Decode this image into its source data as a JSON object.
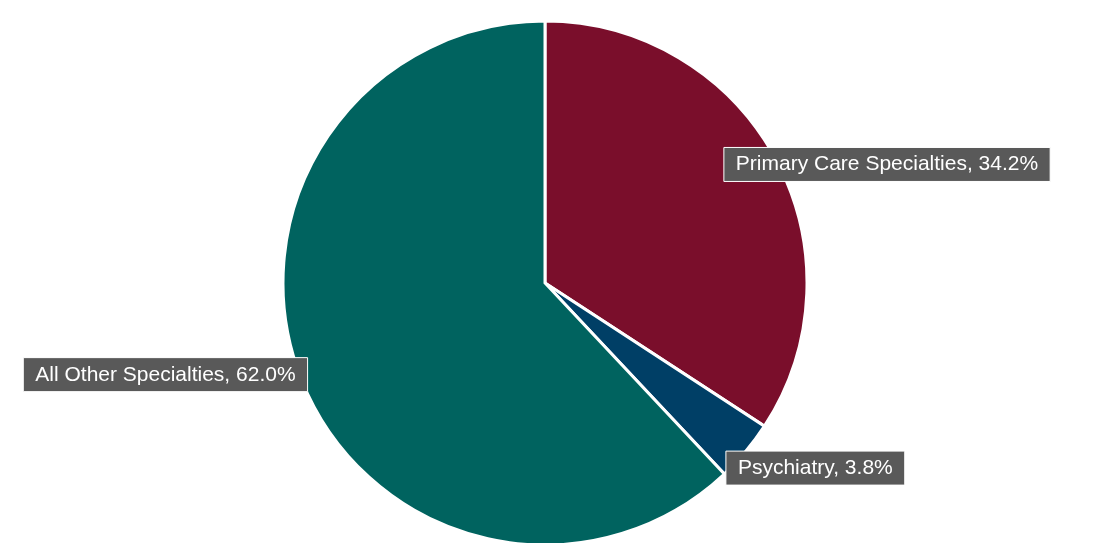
{
  "chart_data": {
    "type": "pie",
    "categories": [
      "Primary Care Specialties",
      "Psychiatry",
      "All Other Specialties"
    ],
    "values": [
      34.2,
      3.8,
      62.0
    ],
    "colors": [
      "#7a0e2b",
      "#003f66",
      "#00635f"
    ],
    "value_labels": [
      "34.2%",
      "3.8%",
      "62.0%"
    ]
  }
}
